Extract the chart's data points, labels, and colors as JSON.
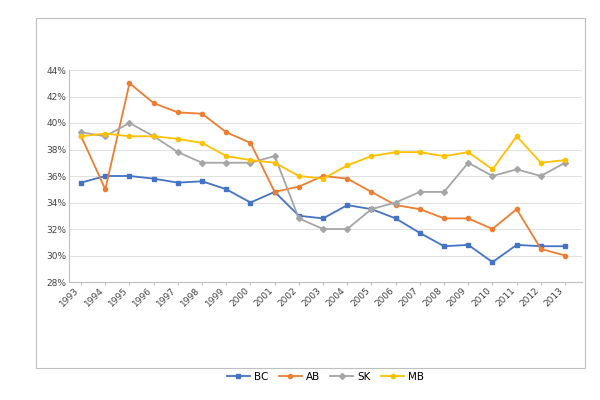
{
  "years": [
    1993,
    1994,
    1995,
    1996,
    1997,
    1998,
    1999,
    2000,
    2001,
    2002,
    2003,
    2004,
    2005,
    2006,
    2007,
    2008,
    2009,
    2010,
    2011,
    2012,
    2013
  ],
  "BC": [
    0.355,
    0.36,
    0.36,
    0.358,
    0.355,
    0.356,
    0.35,
    0.34,
    0.348,
    0.33,
    0.328,
    0.338,
    0.335,
    0.328,
    0.317,
    0.307,
    0.308,
    0.295,
    0.308,
    0.307,
    0.307
  ],
  "AB": [
    0.39,
    0.35,
    0.43,
    0.415,
    0.408,
    0.407,
    0.393,
    0.385,
    0.348,
    0.352,
    0.36,
    0.358,
    0.348,
    0.338,
    0.335,
    0.328,
    0.328,
    0.32,
    0.335,
    0.305,
    0.3
  ],
  "SK": [
    0.393,
    0.39,
    0.4,
    0.39,
    0.378,
    0.37,
    0.37,
    0.37,
    0.375,
    0.328,
    0.32,
    0.32,
    0.335,
    0.34,
    0.348,
    0.348,
    0.37,
    0.36,
    0.365,
    0.36,
    0.37
  ],
  "MB": [
    0.39,
    0.392,
    0.39,
    0.39,
    0.388,
    0.385,
    0.375,
    0.372,
    0.37,
    0.36,
    0.358,
    0.368,
    0.375,
    0.378,
    0.378,
    0.375,
    0.378,
    0.365,
    0.39,
    0.37,
    0.372
  ],
  "BC_color": "#4472C4",
  "AB_color": "#ED7D31",
  "SK_color": "#A5A5A5",
  "MB_color": "#FFC000",
  "ylim": [
    0.28,
    0.44
  ],
  "yticks": [
    0.28,
    0.3,
    0.32,
    0.34,
    0.36,
    0.38,
    0.4,
    0.42,
    0.44
  ],
  "bg_color": "#FFFFFF",
  "plot_bg": "#FFFFFF",
  "box_color": "#BFBFBF",
  "grid_color": "#E0E0E0",
  "marker_size": 3,
  "linewidth": 1.3,
  "tick_fontsize": 6.5,
  "legend_fontsize": 7.5
}
